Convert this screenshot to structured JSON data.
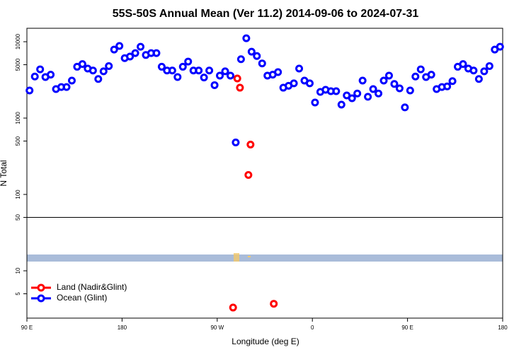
{
  "chart_data": {
    "type": "scatter",
    "title": "55S-50S Annual Mean (Ver 11.2)   2014-09-06 to 2024-07-31",
    "x_label": "Longitude (deg E)",
    "y_label": "N Total",
    "xlim": [
      90,
      540
    ],
    "xticks": [
      {
        "value": 90,
        "label": "90 E"
      },
      {
        "value": 180,
        "label": "180"
      },
      {
        "value": 270,
        "label": "90 W"
      },
      {
        "value": 360,
        "label": "0"
      },
      {
        "value": 450,
        "label": "90 E"
      },
      {
        "value": 540,
        "label": "180"
      }
    ],
    "ylim": [
      2.4,
      15000
    ],
    "y_scale": "log",
    "yticks": [
      5,
      10,
      50,
      100,
      500,
      1000,
      5000,
      10000
    ],
    "hline": 50,
    "legend": "lower left",
    "series": [
      {
        "name": "Land (Nadir&Glint)",
        "color": "#ff0000",
        "x": [
          289,
          291.5,
          301.5,
          299.5,
          285,
          323.5
        ],
        "values": [
          3300,
          2500,
          450,
          180,
          3.3,
          3.7
        ]
      },
      {
        "name": "Ocean (Glint)",
        "color": "#0000ff",
        "x": [
          92.5,
          97.5,
          102.5,
          107.5,
          112.5,
          117.5,
          122.5,
          127.5,
          132.5,
          137.5,
          142.5,
          147.5,
          152.5,
          157.5,
          162.5,
          167.5,
          172.5,
          177.5,
          182.5,
          187.5,
          192.5,
          197.5,
          202.5,
          207.5,
          212.5,
          217.5,
          222.5,
          227.5,
          232.5,
          237.5,
          242.5,
          247.5,
          252.5,
          257.5,
          262.5,
          267.5,
          272.5,
          277.5,
          282.5,
          287.5,
          292.5,
          297.5,
          302.5,
          307.5,
          312.5,
          317.5,
          322.5,
          327.5,
          332.5,
          337.5,
          342.5,
          347.5,
          352.5,
          357.5,
          362.5,
          367.5,
          372.5,
          377.5,
          382.5,
          387.5,
          392.5,
          397.5,
          402.5,
          407.5,
          412.5,
          417.5,
          422.5,
          427.5,
          432.5,
          437.5,
          442.5,
          447.5,
          452.5,
          457.5,
          462.5,
          467.5,
          472.5,
          477.5,
          482.5,
          487.5,
          492.5,
          497.5,
          502.5,
          507.5,
          512.5,
          517.5,
          522.5,
          527.5,
          532.5,
          537.5
        ],
        "values": [
          2300,
          3500,
          4350,
          3450,
          3700,
          2400,
          2550,
          2550,
          3100,
          4700,
          5100,
          4450,
          4200,
          3250,
          4100,
          4800,
          7900,
          8800,
          6100,
          6400,
          7100,
          8600,
          6700,
          7100,
          7100,
          4700,
          4200,
          4200,
          3450,
          4700,
          5500,
          4200,
          4200,
          3400,
          4200,
          2700,
          3600,
          4100,
          3600,
          480,
          5900,
          11100,
          7400,
          6500,
          5200,
          3600,
          3700,
          4000,
          2500,
          2650,
          2850,
          4450,
          3100,
          2850,
          1600,
          2200,
          2350,
          2250,
          2250,
          1500,
          1980,
          1820,
          2100,
          3100,
          1900,
          2400,
          2100,
          3100,
          3600,
          2800,
          2450,
          1380,
          2300,
          3500,
          4350,
          3450,
          3700,
          2400,
          2550,
          2600,
          3050,
          4700,
          5100,
          4450,
          4200,
          3250,
          4100,
          4800,
          7900,
          8600
        ]
      }
    ]
  }
}
